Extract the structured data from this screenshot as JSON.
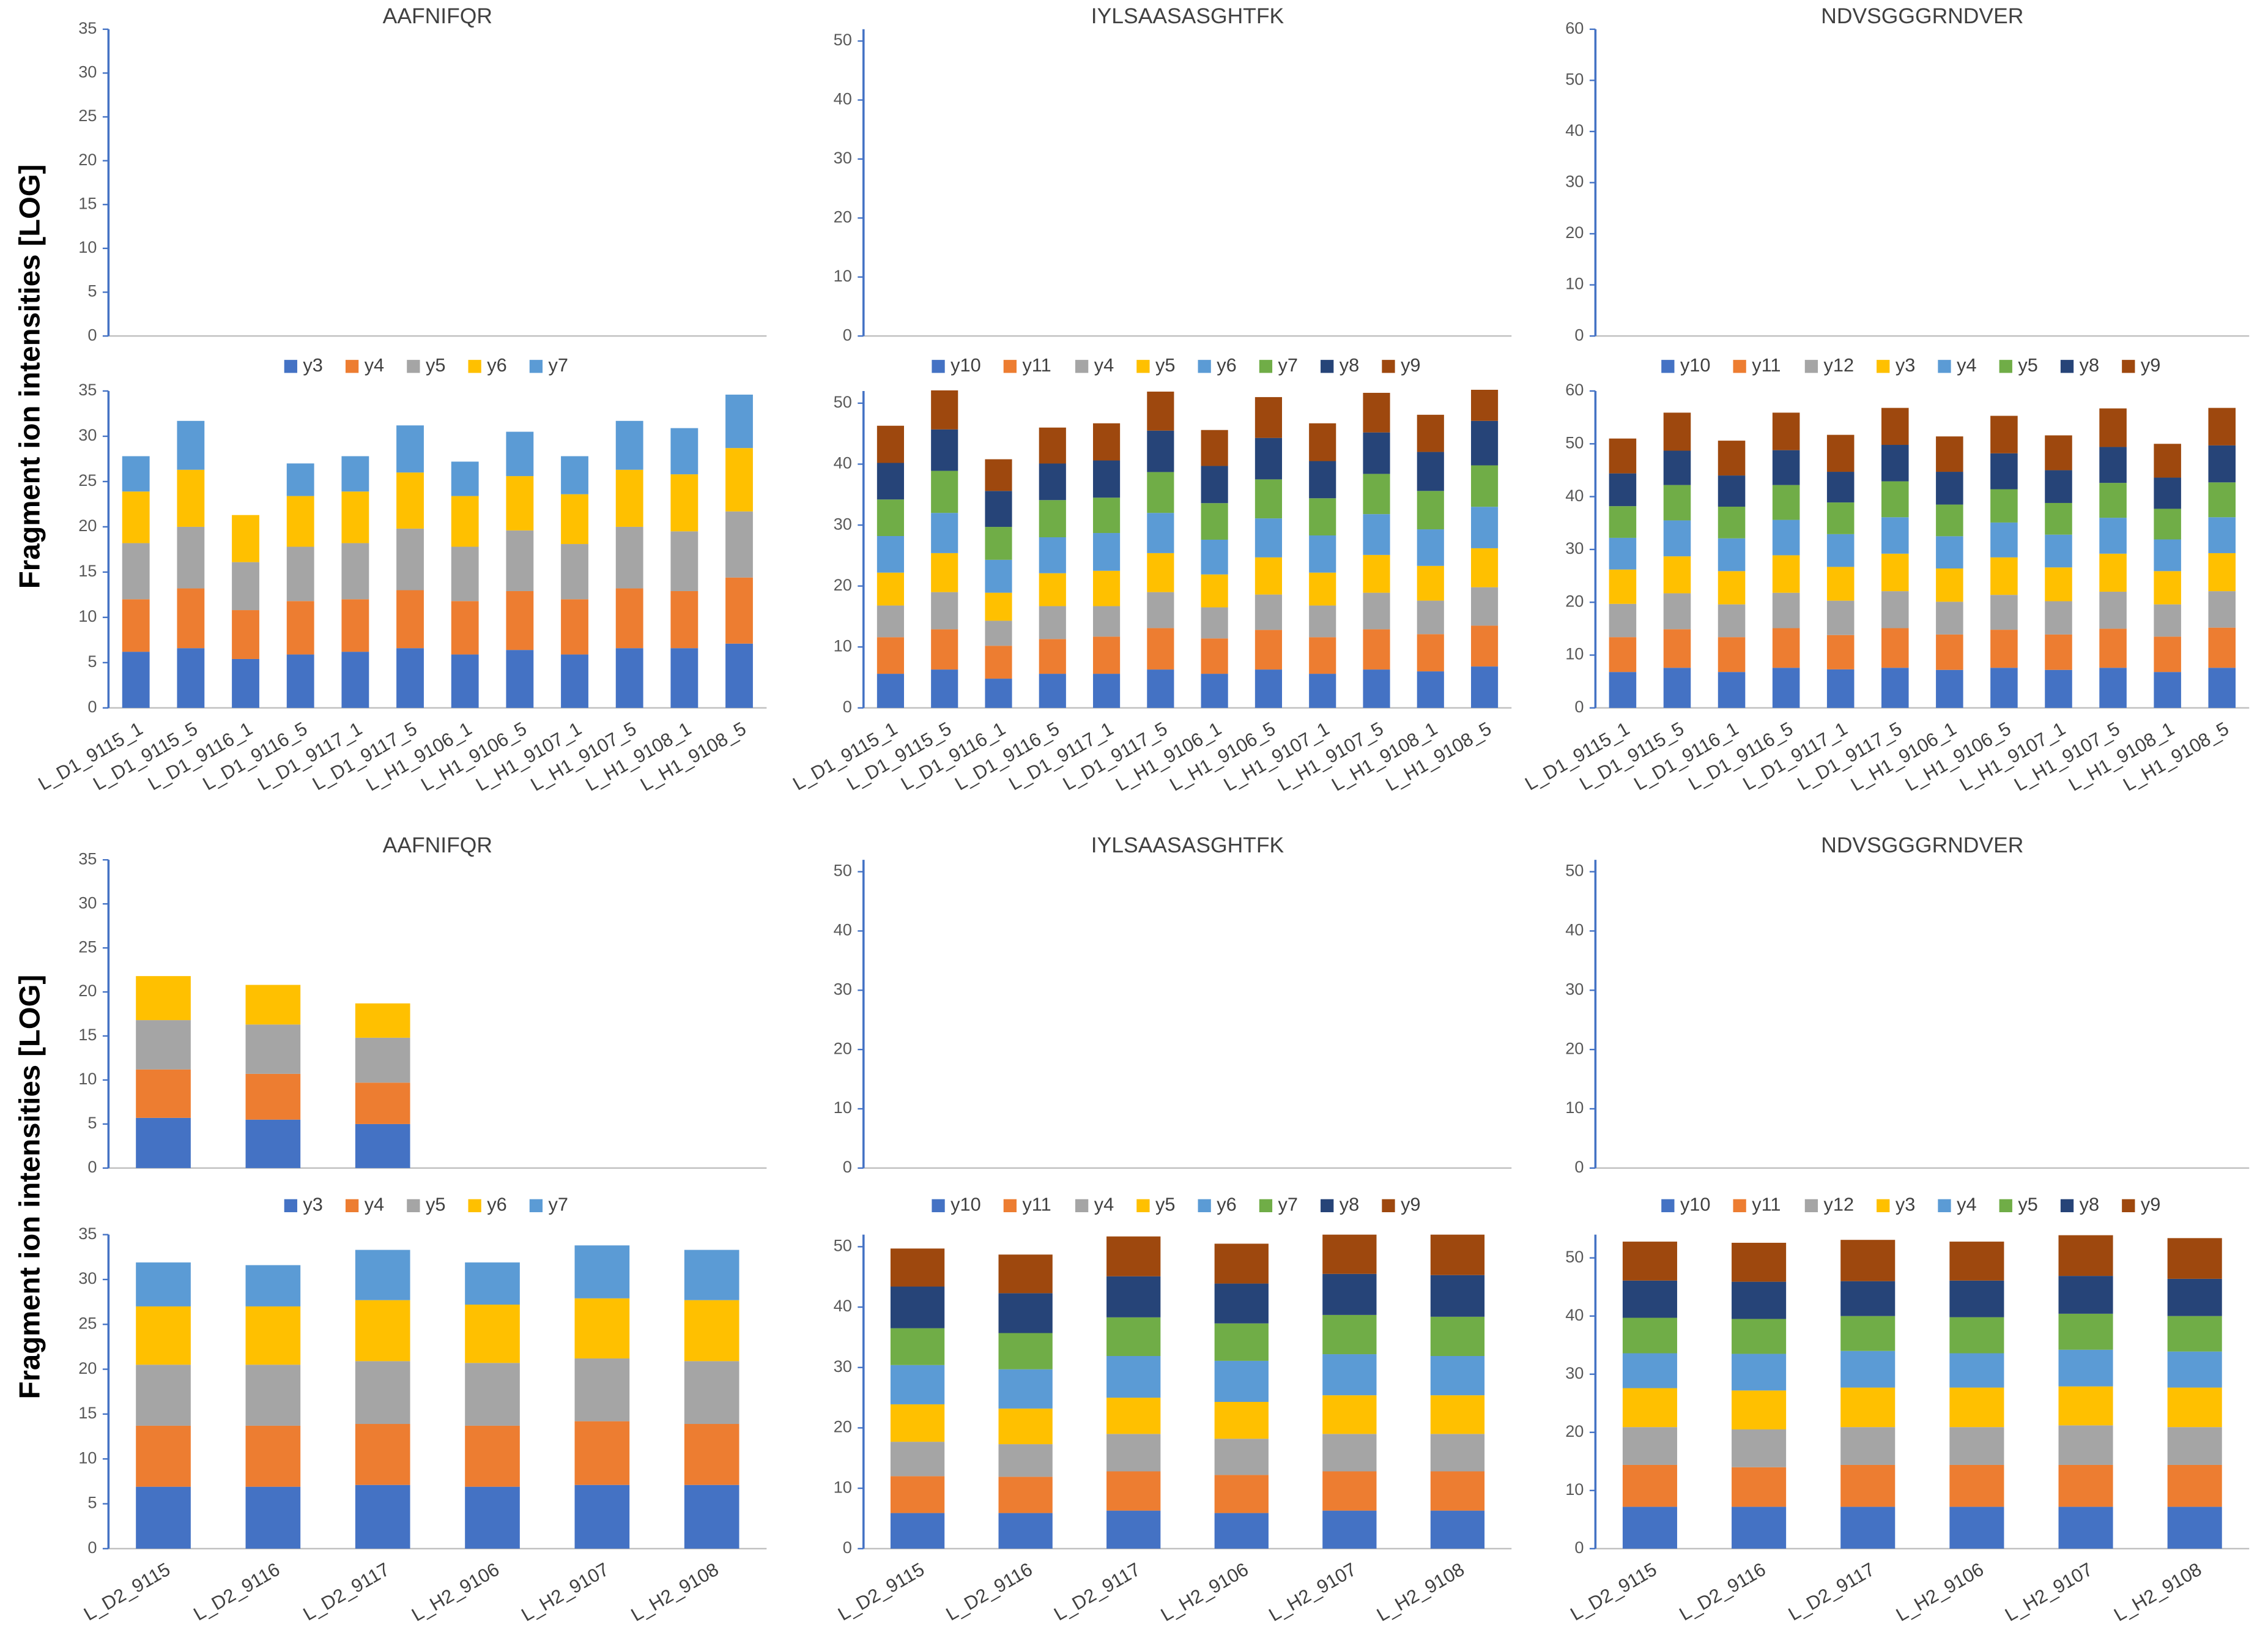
{
  "chart_data": [
    {
      "type": "bar",
      "title": "AAFNIFQR",
      "ylabel": "Fragment ion intensities [LOG]",
      "ylim": [
        0,
        35
      ],
      "yticks": [
        0,
        5,
        10,
        15,
        20,
        25,
        30,
        35
      ]
    },
    {
      "type": "bar",
      "title": "IYLSAASASGHTFK",
      "ylim": [
        0,
        52
      ],
      "yticks": [
        0,
        10,
        20,
        30,
        40,
        50
      ]
    },
    {
      "type": "bar",
      "title": "NDVSGGGRNDVER",
      "ylim": [
        0,
        60
      ],
      "yticks": [
        0,
        10,
        20,
        30,
        40,
        50,
        60
      ]
    },
    {
      "type": "bar",
      "stacked": true,
      "legend": "top",
      "ylim": [
        0,
        35
      ],
      "yticks": [
        0,
        5,
        10,
        15,
        20,
        25,
        30,
        35
      ],
      "categories": [
        "L_D1_9115_1",
        "L_D1_9115_5",
        "L_D1_9116_1",
        "L_D1_9116_5",
        "L_D1_9117_1",
        "L_D1_9117_5",
        "L_H1_9106_1",
        "L_H1_9106_5",
        "L_H1_9107_1",
        "L_H1_9107_5",
        "L_H1_9108_1",
        "L_H1_9108_5"
      ],
      "series": [
        {
          "name": "y3",
          "color": "#4472c4",
          "values": [
            6.2,
            6.6,
            5.4,
            5.9,
            6.2,
            6.6,
            5.9,
            6.4,
            5.9,
            6.6,
            6.6,
            7.1
          ]
        },
        {
          "name": "y4",
          "color": "#ed7d31",
          "values": [
            5.8,
            6.6,
            5.4,
            5.9,
            5.8,
            6.4,
            5.9,
            6.5,
            6.1,
            6.6,
            6.3,
            7.3
          ]
        },
        {
          "name": "y5",
          "color": "#a5a5a5",
          "values": [
            6.2,
            6.8,
            5.3,
            6.0,
            6.2,
            6.8,
            6.0,
            6.7,
            6.1,
            6.8,
            6.6,
            7.3
          ]
        },
        {
          "name": "y6",
          "color": "#ffc000",
          "values": [
            5.7,
            6.3,
            5.2,
            5.6,
            5.7,
            6.2,
            5.6,
            6.0,
            5.5,
            6.3,
            6.3,
            7.0
          ]
        },
        {
          "name": "y7",
          "color": "#5b9bd5",
          "values": [
            3.9,
            5.4,
            null,
            3.6,
            3.9,
            5.2,
            3.8,
            4.9,
            4.2,
            5.4,
            5.1,
            5.9
          ]
        }
      ]
    },
    {
      "type": "bar",
      "stacked": true,
      "legend": "top",
      "ylim": [
        0,
        52
      ],
      "yticks": [
        0,
        10,
        20,
        30,
        40,
        50
      ],
      "categories": [
        "L_D1_9115_1",
        "L_D1_9115_5",
        "L_D1_9116_1",
        "L_D1_9116_5",
        "L_D1_9117_1",
        "L_D1_9117_5",
        "L_H1_9106_1",
        "L_H1_9106_5",
        "L_H1_9107_1",
        "L_H1_9107_5",
        "L_H1_9108_1",
        "L_H1_9108_5"
      ],
      "series": [
        {
          "name": "y10",
          "color": "#4472c4",
          "values": [
            5.6,
            6.3,
            4.8,
            5.6,
            5.6,
            6.3,
            5.6,
            6.3,
            5.6,
            6.3,
            6.0,
            6.8
          ]
        },
        {
          "name": "y11",
          "color": "#ed7d31",
          "values": [
            6.0,
            6.6,
            5.4,
            5.7,
            6.1,
            6.8,
            5.8,
            6.5,
            6.0,
            6.6,
            6.1,
            6.7
          ]
        },
        {
          "name": "y4",
          "color": "#a5a5a5",
          "values": [
            5.2,
            6.1,
            4.1,
            5.4,
            5.0,
            5.9,
            5.1,
            5.8,
            5.2,
            6.0,
            5.5,
            6.3
          ]
        },
        {
          "name": "y5",
          "color": "#ffc000",
          "values": [
            5.4,
            6.4,
            4.6,
            5.4,
            5.8,
            6.4,
            5.4,
            6.1,
            5.4,
            6.2,
            5.7,
            6.4
          ]
        },
        {
          "name": "y6",
          "color": "#5b9bd5",
          "values": [
            6.0,
            6.6,
            5.4,
            5.9,
            6.2,
            6.6,
            5.7,
            6.4,
            6.1,
            6.7,
            6.0,
            6.8
          ]
        },
        {
          "name": "y7",
          "color": "#70ad47",
          "values": [
            6.0,
            6.9,
            5.4,
            6.1,
            5.8,
            6.7,
            6.0,
            6.4,
            6.1,
            6.6,
            6.3,
            6.8
          ]
        },
        {
          "name": "y8",
          "color": "#264478",
          "values": [
            6.0,
            6.8,
            5.9,
            6.0,
            6.1,
            6.8,
            6.1,
            6.8,
            6.1,
            6.8,
            6.4,
            7.3
          ]
        },
        {
          "name": "y9",
          "color": "#9e480e",
          "values": [
            6.1,
            6.4,
            5.2,
            5.9,
            6.1,
            6.4,
            5.9,
            6.7,
            6.2,
            6.5,
            6.1,
            5.1
          ]
        }
      ]
    },
    {
      "type": "bar",
      "stacked": true,
      "legend": "top",
      "ylim": [
        0,
        60
      ],
      "yticks": [
        0,
        10,
        20,
        30,
        40,
        50,
        60
      ],
      "categories": [
        "L_D1_9115_1",
        "L_D1_9115_5",
        "L_D1_9116_1",
        "L_D1_9116_5",
        "L_D1_9117_1",
        "L_D1_9117_5",
        "L_H1_9106_1",
        "L_H1_9106_5",
        "L_H1_9107_1",
        "L_H1_9107_5",
        "L_H1_9108_1",
        "L_H1_9108_5"
      ],
      "series": [
        {
          "name": "y10",
          "color": "#4472c4",
          "values": [
            6.8,
            7.6,
            6.8,
            7.6,
            7.3,
            7.6,
            7.2,
            7.6,
            7.2,
            7.6,
            6.8,
            7.6
          ]
        },
        {
          "name": "y11",
          "color": "#ed7d31",
          "values": [
            6.6,
            7.3,
            6.6,
            7.5,
            6.5,
            7.5,
            6.7,
            7.2,
            6.7,
            7.4,
            6.7,
            7.6
          ]
        },
        {
          "name": "y12",
          "color": "#a5a5a5",
          "values": [
            6.3,
            6.8,
            6.2,
            6.7,
            6.5,
            7.0,
            6.2,
            6.6,
            6.3,
            7.0,
            6.1,
            6.9
          ]
        },
        {
          "name": "y3",
          "color": "#ffc000",
          "values": [
            6.5,
            7.0,
            6.3,
            7.1,
            6.4,
            7.1,
            6.3,
            7.1,
            6.4,
            7.2,
            6.3,
            7.2
          ]
        },
        {
          "name": "y4",
          "color": "#5b9bd5",
          "values": [
            6.0,
            6.8,
            6.2,
            6.7,
            6.2,
            6.9,
            6.1,
            6.6,
            6.2,
            6.8,
            6.0,
            6.8
          ]
        },
        {
          "name": "y5",
          "color": "#70ad47",
          "values": [
            6.0,
            6.7,
            6.0,
            6.6,
            6.0,
            6.8,
            6.0,
            6.3,
            6.0,
            6.6,
            5.8,
            6.6
          ]
        },
        {
          "name": "y8",
          "color": "#264478",
          "values": [
            6.2,
            6.5,
            5.9,
            6.6,
            5.8,
            6.9,
            6.2,
            6.8,
            6.2,
            6.8,
            5.9,
            7.0
          ]
        },
        {
          "name": "y9",
          "color": "#9e480e",
          "values": [
            6.6,
            7.2,
            6.6,
            7.1,
            7.0,
            7.0,
            6.7,
            7.1,
            6.6,
            7.3,
            6.4,
            7.1
          ]
        }
      ]
    },
    {
      "type": "bar",
      "stacked": true,
      "title": "AAFNIFQR",
      "ylabel": "Fragment ion intensities [LOG]",
      "ylim": [
        0,
        35
      ],
      "yticks": [
        0,
        5,
        10,
        15,
        20,
        25,
        30,
        35
      ],
      "series": [
        {
          "color": "#4472c4",
          "values": [
            5.7,
            5.5,
            5.0,
            null,
            null,
            null
          ]
        },
        {
          "color": "#ed7d31",
          "values": [
            5.5,
            5.2,
            4.7,
            null,
            null,
            null
          ]
        },
        {
          "color": "#a5a5a5",
          "values": [
            5.6,
            5.6,
            5.1,
            null,
            null,
            null
          ]
        },
        {
          "color": "#ffc000",
          "values": [
            5.0,
            4.5,
            3.9,
            null,
            null,
            null
          ]
        }
      ]
    },
    {
      "type": "bar",
      "title": "IYLSAASASGHTFK",
      "ylim": [
        0,
        52
      ],
      "yticks": [
        0,
        10,
        20,
        30,
        40,
        50
      ]
    },
    {
      "type": "bar",
      "title": "NDVSGGGRNDVER",
      "ylim": [
        0,
        52
      ],
      "yticks": [
        0,
        10,
        20,
        30,
        40,
        50
      ]
    },
    {
      "type": "bar",
      "stacked": true,
      "legend": "top",
      "ylim": [
        0,
        35
      ],
      "yticks": [
        0,
        5,
        10,
        15,
        20,
        25,
        30,
        35
      ],
      "categories": [
        "L_D2_9115",
        "L_D2_9116",
        "L_D2_9117",
        "L_H2_9106",
        "L_H2_9107",
        "L_H2_9108"
      ],
      "series": [
        {
          "name": "y3",
          "color": "#4472c4",
          "values": [
            6.9,
            6.9,
            7.1,
            6.9,
            7.1,
            7.1
          ]
        },
        {
          "name": "y4",
          "color": "#ed7d31",
          "values": [
            6.8,
            6.8,
            6.8,
            6.8,
            7.1,
            6.8
          ]
        },
        {
          "name": "y5",
          "color": "#a5a5a5",
          "values": [
            6.8,
            6.8,
            7.0,
            7.0,
            7.0,
            7.0
          ]
        },
        {
          "name": "y6",
          "color": "#ffc000",
          "values": [
            6.5,
            6.5,
            6.8,
            6.5,
            6.7,
            6.8
          ]
        },
        {
          "name": "y7",
          "color": "#5b9bd5",
          "values": [
            4.9,
            4.6,
            5.6,
            4.7,
            5.9,
            5.6
          ]
        }
      ]
    },
    {
      "type": "bar",
      "stacked": true,
      "legend": "top",
      "ylim": [
        0,
        52
      ],
      "yticks": [
        0,
        10,
        20,
        30,
        40,
        50
      ],
      "categories": [
        "L_D2_9115",
        "L_D2_9116",
        "L_D2_9117",
        "L_H2_9106",
        "L_H2_9107",
        "L_H2_9108"
      ],
      "series": [
        {
          "name": "y10",
          "color": "#4472c4",
          "values": [
            5.9,
            5.9,
            6.3,
            5.9,
            6.3,
            6.3
          ]
        },
        {
          "name": "y11",
          "color": "#ed7d31",
          "values": [
            6.1,
            6.0,
            6.5,
            6.3,
            6.5,
            6.5
          ]
        },
        {
          "name": "y4",
          "color": "#a5a5a5",
          "values": [
            5.7,
            5.4,
            6.2,
            6.0,
            6.2,
            6.2
          ]
        },
        {
          "name": "y5",
          "color": "#ffc000",
          "values": [
            6.2,
            5.9,
            6.0,
            6.1,
            6.4,
            6.4
          ]
        },
        {
          "name": "y6",
          "color": "#5b9bd5",
          "values": [
            6.5,
            6.5,
            6.9,
            6.8,
            6.8,
            6.5
          ]
        },
        {
          "name": "y7",
          "color": "#70ad47",
          "values": [
            6.1,
            6.0,
            6.4,
            6.2,
            6.5,
            6.5
          ]
        },
        {
          "name": "y8",
          "color": "#264478",
          "values": [
            6.9,
            6.6,
            6.8,
            6.6,
            6.8,
            6.9
          ]
        },
        {
          "name": "y9",
          "color": "#9e480e",
          "values": [
            6.3,
            6.4,
            6.6,
            6.6,
            6.5,
            6.7
          ]
        }
      ]
    },
    {
      "type": "bar",
      "stacked": true,
      "legend": "top",
      "ylim": [
        0,
        54
      ],
      "yticks": [
        0,
        10,
        20,
        30,
        40,
        50
      ],
      "categories": [
        "L_D2_9115",
        "L_D2_9116",
        "L_D2_9117",
        "L_H2_9106",
        "L_H2_9107",
        "L_H2_9108"
      ],
      "series": [
        {
          "name": "y10",
          "color": "#4472c4",
          "values": [
            7.2,
            7.2,
            7.2,
            7.2,
            7.2,
            7.2
          ]
        },
        {
          "name": "y11",
          "color": "#ed7d31",
          "values": [
            7.2,
            6.8,
            7.2,
            7.2,
            7.2,
            7.2
          ]
        },
        {
          "name": "y12",
          "color": "#a5a5a5",
          "values": [
            6.5,
            6.5,
            6.5,
            6.5,
            6.8,
            6.5
          ]
        },
        {
          "name": "y3",
          "color": "#ffc000",
          "values": [
            6.7,
            6.7,
            6.8,
            6.8,
            6.7,
            6.8
          ]
        },
        {
          "name": "y4",
          "color": "#5b9bd5",
          "values": [
            6.0,
            6.3,
            6.3,
            5.9,
            6.3,
            6.2
          ]
        },
        {
          "name": "y5",
          "color": "#70ad47",
          "values": [
            6.1,
            6.0,
            6.0,
            6.2,
            6.2,
            6.1
          ]
        },
        {
          "name": "y8",
          "color": "#264478",
          "values": [
            6.4,
            6.4,
            6.0,
            6.3,
            6.5,
            6.4
          ]
        },
        {
          "name": "y9",
          "color": "#9e480e",
          "values": [
            6.7,
            6.7,
            7.1,
            6.7,
            7.0,
            7.0
          ]
        }
      ]
    }
  ]
}
